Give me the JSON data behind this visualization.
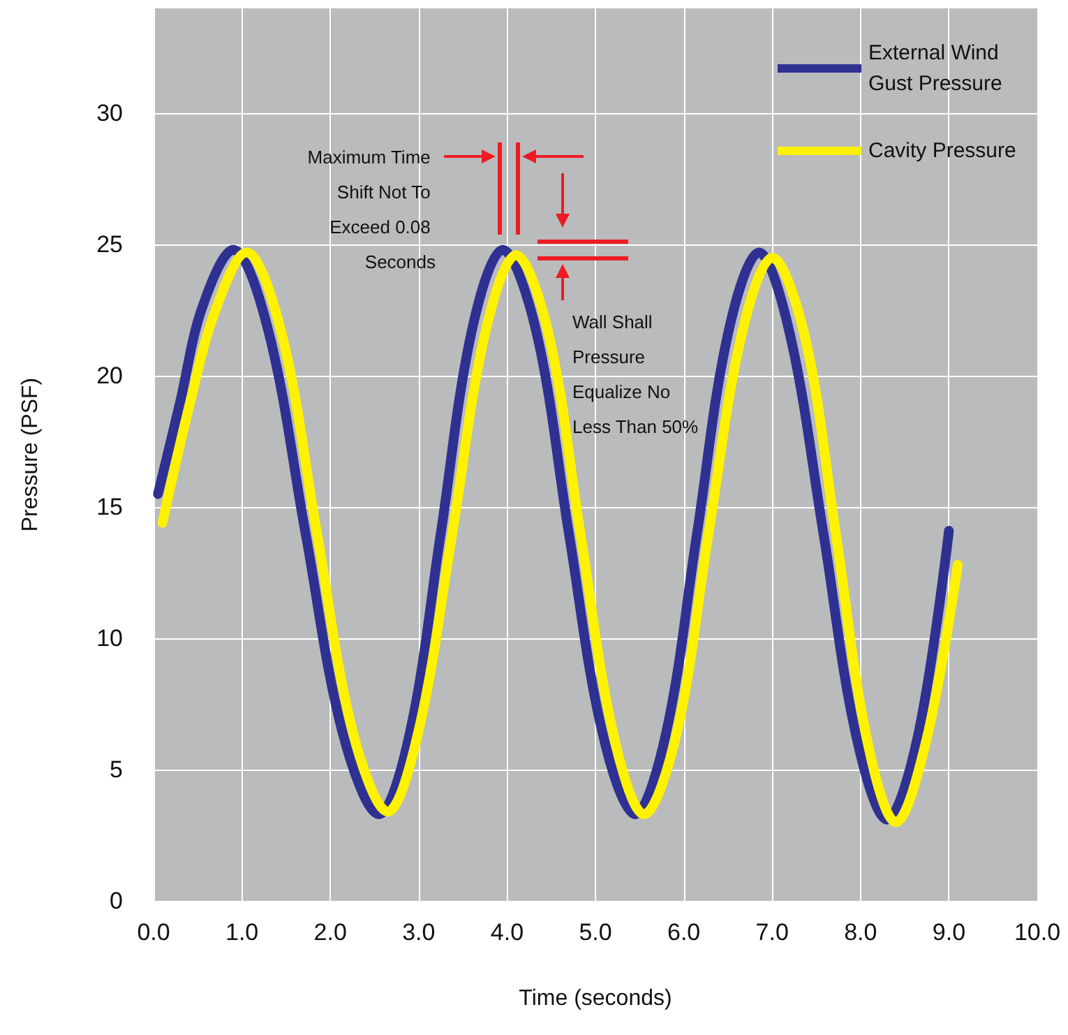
{
  "chart_data": {
    "type": "line",
    "xlabel": "Time (seconds)",
    "ylabel": "Pressure (PSF)",
    "xlim": [
      0,
      10
    ],
    "ylim": [
      0,
      34
    ],
    "xticks": [
      {
        "value": 0,
        "label": "0.0"
      },
      {
        "value": 1,
        "label": "1.0"
      },
      {
        "value": 2,
        "label": "2.0"
      },
      {
        "value": 3,
        "label": "3.0"
      },
      {
        "value": 4,
        "label": "4.0"
      },
      {
        "value": 5,
        "label": "5.0"
      },
      {
        "value": 6,
        "label": "6.0"
      },
      {
        "value": 7,
        "label": "7.0"
      },
      {
        "value": 8,
        "label": "8.0"
      },
      {
        "value": 9,
        "label": "9.0"
      },
      {
        "value": 10,
        "label": "10.0"
      }
    ],
    "yticks": [
      0,
      5,
      10,
      15,
      20,
      25,
      30
    ],
    "grid": true,
    "legend": "top right",
    "marker": "none",
    "line_style": "solid",
    "series": [
      {
        "name": "External Wind Gust Pressure",
        "color": "#2e3192",
        "x": [
          0.05,
          0.3,
          0.55,
          0.9,
          1.3,
          1.72,
          2.14,
          2.55,
          2.9,
          3.25,
          3.6,
          3.95,
          4.33,
          4.7,
          5.08,
          5.45,
          5.8,
          6.15,
          6.5,
          6.85,
          7.2,
          7.58,
          7.95,
          8.3,
          8.65,
          9.0
        ],
        "values": [
          15.5,
          19.0,
          22.6,
          24.8,
          21.7,
          14.0,
          6.4,
          3.3,
          6.4,
          14.0,
          21.7,
          24.8,
          21.7,
          14.0,
          6.4,
          3.3,
          6.4,
          14.0,
          21.6,
          24.7,
          21.6,
          14.0,
          6.3,
          3.1,
          6.3,
          14.1
        ]
      },
      {
        "name": "Cavity Pressure",
        "color": "#fff200",
        "x": [
          0.1,
          0.4,
          0.7,
          1.05,
          1.45,
          1.85,
          2.25,
          2.65,
          3.0,
          3.38,
          3.75,
          4.1,
          4.47,
          4.83,
          5.2,
          5.55,
          5.92,
          6.28,
          6.65,
          7.0,
          7.37,
          7.72,
          8.07,
          8.4,
          8.75,
          9.1
        ],
        "values": [
          14.4,
          18.8,
          22.5,
          24.7,
          21.6,
          14.0,
          6.5,
          3.4,
          6.5,
          14.0,
          21.6,
          24.6,
          21.6,
          14.0,
          6.4,
          3.3,
          6.4,
          14.0,
          21.5,
          24.5,
          21.5,
          14.0,
          6.2,
          3.0,
          6.2,
          12.8
        ]
      }
    ],
    "annotations": [
      "Maximum Time Shift Not To Exceed 0.08 Seconds",
      "Wall Shall Pressure Equalize No Less Than 50%"
    ]
  }
}
